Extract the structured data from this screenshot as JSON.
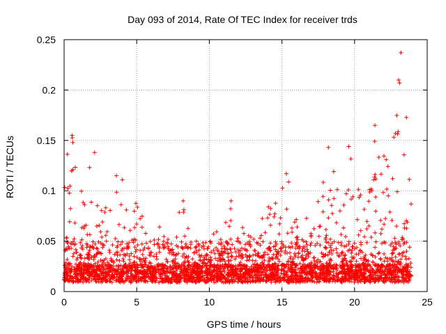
{
  "chart_data": {
    "type": "scatter",
    "title": "Day 093 of 2014, Rate Of TEC Index for receiver trds",
    "xlabel": "GPS time / hours",
    "ylabel": "ROTI / TECUs",
    "xlim": [
      0,
      25
    ],
    "ylim": [
      0,
      0.25
    ],
    "xticks": [
      0,
      5,
      10,
      15,
      20,
      25
    ],
    "yticks": [
      0,
      0.05,
      0.1,
      0.15,
      0.2,
      0.25
    ],
    "xtick_labels": [
      "0",
      "5",
      "10",
      "15",
      "20",
      "25"
    ],
    "ytick_labels": [
      "0",
      "0.05",
      "0.1",
      "0.15",
      "0.2",
      "0.25"
    ],
    "grid": true,
    "marker": "+",
    "series": [
      {
        "name": "ROTI",
        "color": "#ff0000",
        "data_extent_hours": [
          0,
          23.9
        ],
        "baseline_level": 0.02,
        "envelope": [
          [
            0.0,
            0.125
          ],
          [
            0.3,
            0.14
          ],
          [
            0.6,
            0.155
          ],
          [
            1.0,
            0.12
          ],
          [
            1.5,
            0.115
          ],
          [
            2.1,
            0.14
          ],
          [
            2.5,
            0.11
          ],
          [
            3.0,
            0.08
          ],
          [
            3.5,
            0.11
          ],
          [
            4.0,
            0.115
          ],
          [
            4.5,
            0.09
          ],
          [
            5.0,
            0.095
          ],
          [
            5.5,
            0.08
          ],
          [
            6.0,
            0.07
          ],
          [
            7.0,
            0.06
          ],
          [
            8.2,
            0.09
          ],
          [
            9.0,
            0.06
          ],
          [
            10.0,
            0.065
          ],
          [
            11.0,
            0.065
          ],
          [
            11.5,
            0.09
          ],
          [
            12.0,
            0.06
          ],
          [
            13.0,
            0.08
          ],
          [
            13.5,
            0.07
          ],
          [
            14.0,
            0.085
          ],
          [
            14.5,
            0.095
          ],
          [
            15.3,
            0.12
          ],
          [
            16.0,
            0.08
          ],
          [
            17.0,
            0.07
          ],
          [
            17.5,
            0.09
          ],
          [
            18.2,
            0.14
          ],
          [
            19.0,
            0.105
          ],
          [
            19.5,
            0.145
          ],
          [
            20.0,
            0.12
          ],
          [
            20.5,
            0.11
          ],
          [
            21.0,
            0.13
          ],
          [
            21.5,
            0.165
          ],
          [
            22.0,
            0.15
          ],
          [
            22.5,
            0.15
          ],
          [
            23.0,
            0.205
          ],
          [
            23.2,
            0.237
          ],
          [
            23.5,
            0.18
          ],
          [
            23.9,
            0.15
          ]
        ],
        "highlighted_points": [
          {
            "x": 0.55,
            "y": 0.155
          },
          {
            "x": 0.6,
            "y": 0.148
          },
          {
            "x": 2.1,
            "y": 0.138
          },
          {
            "x": 3.6,
            "y": 0.115
          },
          {
            "x": 8.2,
            "y": 0.09
          },
          {
            "x": 11.5,
            "y": 0.09
          },
          {
            "x": 15.3,
            "y": 0.117
          },
          {
            "x": 18.2,
            "y": 0.143
          },
          {
            "x": 19.6,
            "y": 0.144
          },
          {
            "x": 21.4,
            "y": 0.165
          },
          {
            "x": 23.1,
            "y": 0.207
          },
          {
            "x": 23.2,
            "y": 0.237
          }
        ]
      }
    ]
  }
}
